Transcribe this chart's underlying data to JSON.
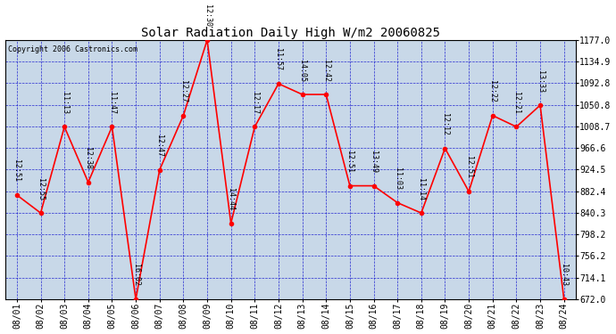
{
  "title": "Solar Radiation Daily High W/m2 20060825",
  "copyright": "Copyright 2006 Castronics.com",
  "background_color": "#ffffff",
  "plot_bg_color": "#c8d8e8",
  "line_color": "#ff0000",
  "marker_color": "#ff0000",
  "grid_color": "#0000cc",
  "text_color": "#000000",
  "ylim_min": 672.0,
  "ylim_max": 1177.0,
  "yticks": [
    672.0,
    714.1,
    756.2,
    798.2,
    840.3,
    882.4,
    924.5,
    966.6,
    1008.7,
    1050.8,
    1092.8,
    1134.9,
    1177.0
  ],
  "dates": [
    "08/01",
    "08/02",
    "08/03",
    "08/04",
    "08/05",
    "08/06",
    "08/07",
    "08/08",
    "08/09",
    "08/10",
    "08/11",
    "08/12",
    "08/13",
    "08/14",
    "08/15",
    "08/16",
    "08/17",
    "08/18",
    "08/19",
    "08/20",
    "08/21",
    "08/22",
    "08/23",
    "08/24"
  ],
  "values": [
    875,
    840,
    1008,
    900,
    1008,
    672,
    924,
    1030,
    1177,
    820,
    1008,
    1092,
    1071,
    1071,
    893,
    893,
    860,
    840,
    966,
    882,
    1030,
    1008,
    1050,
    672
  ],
  "labels": [
    "12:51",
    "12:55",
    "11:13",
    "12:38",
    "11:47",
    "16:02",
    "12:47",
    "12:27",
    "12:30",
    "14:44",
    "12:17",
    "11:57",
    "14:05",
    "12:42",
    "12:51",
    "13:49",
    "11:03",
    "11:14",
    "12:12",
    "12:51",
    "12:22",
    "12:21",
    "13:33",
    "10:43"
  ],
  "title_fontsize": 10,
  "tick_fontsize": 7,
  "label_fontsize": 6,
  "copyright_fontsize": 6
}
